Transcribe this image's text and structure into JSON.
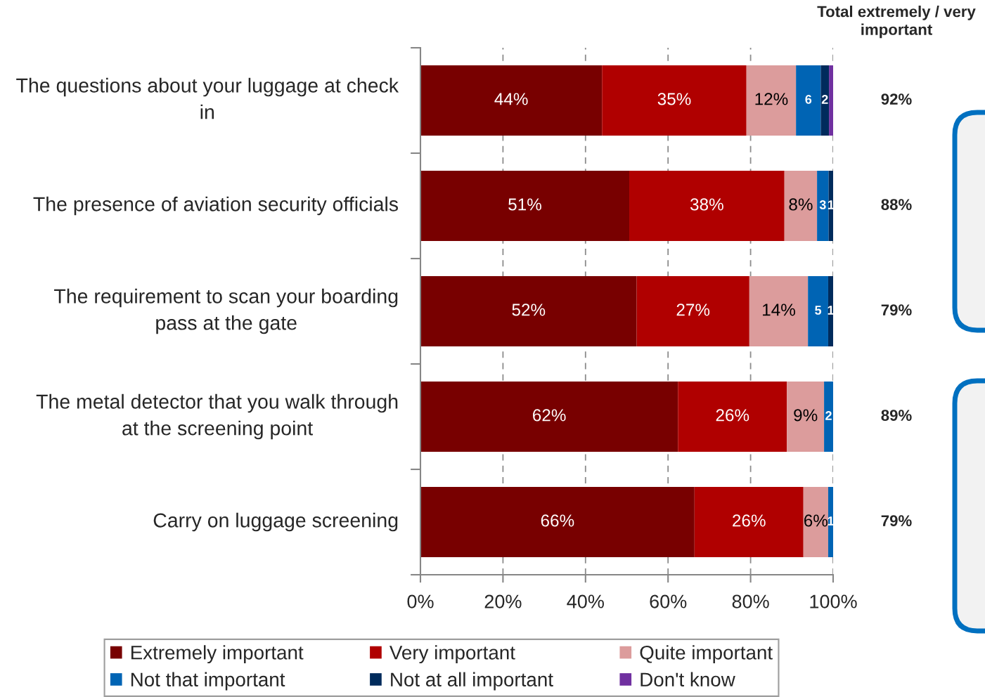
{
  "chart_data": {
    "type": "bar",
    "orientation": "horizontal",
    "stacked": true,
    "categories": [
      "The questions about your luggage at check\nin",
      "The presence of aviation security officials",
      "The requirement to scan your boarding\npass at the gate",
      "The metal detector that you walk through\nat the screening point",
      "Carry on luggage screening"
    ],
    "series": [
      {
        "name": "Extremely important",
        "color": "#780000",
        "values": [
          44,
          50.6,
          52.4,
          62.4,
          66.4
        ],
        "value_labels": [
          "44%",
          "51%",
          "52%",
          "62%",
          "66%"
        ]
      },
      {
        "name": "Very important",
        "color": "#b00000",
        "values": [
          35,
          37.6,
          27.3,
          26.4,
          26.4
        ],
        "value_labels": [
          "35%",
          "38%",
          "27%",
          "26%",
          "26%"
        ]
      },
      {
        "name": "Quite important",
        "color": "#dc9c9c",
        "values": [
          12,
          7.9,
          14.2,
          9.0,
          6.0
        ],
        "value_labels": [
          "12%",
          "8%",
          "14%",
          "9%",
          "6%"
        ]
      },
      {
        "name": "Not that important",
        "color": "#0064b4",
        "values": [
          6,
          2.8,
          4.9,
          2.2,
          1.2
        ],
        "value_labels": [
          "6",
          "3",
          "5",
          "2",
          "1"
        ]
      },
      {
        "name": "Not at all important",
        "color": "#002b5c",
        "values": [
          2,
          1.1,
          1.2,
          null,
          null
        ],
        "value_labels": [
          "2",
          "1",
          "1",
          null,
          null
        ]
      },
      {
        "name": "Don't know",
        "color": "#7030a0",
        "values": [
          1,
          null,
          null,
          null,
          null
        ]
      }
    ],
    "xlim": [
      0,
      100
    ],
    "xticks": [
      {
        "value": 0,
        "label": "0%"
      },
      {
        "value": 20,
        "label": "20%"
      },
      {
        "value": 40,
        "label": "40%"
      },
      {
        "value": 60,
        "label": "60%"
      },
      {
        "value": 80,
        "label": "80%"
      },
      {
        "value": 100,
        "label": "100%"
      }
    ],
    "grid": "x",
    "legend": "bottom",
    "annotations": [
      "Total extremely / very\nimportant",
      "92%",
      "88%",
      "79%",
      "89%",
      "79%"
    ]
  }
}
